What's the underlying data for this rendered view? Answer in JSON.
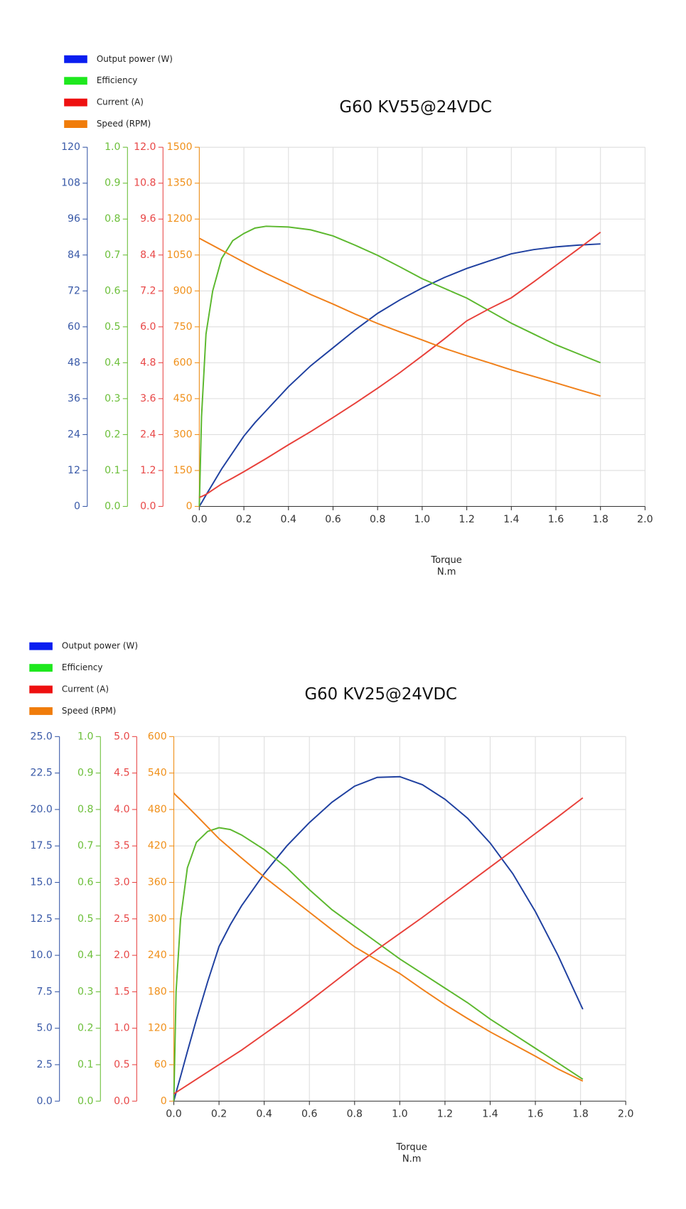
{
  "chart_data": [
    {
      "type": "line",
      "title": "G60 KV55@24VDC",
      "xlabel": "Torque",
      "xlabel_unit": "N.m",
      "xlim": [
        0,
        2
      ],
      "xticks": [
        {
          "value": 0,
          "label": "0.0"
        },
        0.2,
        0.4,
        0.6,
        0.8,
        {
          "value": 1,
          "label": "1.0"
        },
        1.2,
        1.4,
        1.6,
        1.8,
        {
          "value": 2,
          "label": "2.0"
        }
      ],
      "grid": true,
      "y_axes": [
        {
          "color": "#3a5aa8",
          "lim": [
            0,
            120
          ],
          "ticks": [
            0,
            12,
            24,
            36,
            48,
            60,
            72,
            84,
            96,
            108,
            120
          ]
        },
        {
          "color": "#6cbf3a",
          "lim": [
            0,
            1
          ],
          "ticks": [
            {
              "value": 0,
              "label": "0.0"
            },
            0.1,
            0.2,
            0.3,
            0.4,
            0.5,
            0.6,
            0.7,
            0.8,
            0.9,
            {
              "value": 1,
              "label": "1.0"
            }
          ]
        },
        {
          "color": "#e84848",
          "lim": [
            0,
            12
          ],
          "ticks": [
            {
              "value": 0,
              "label": "0.0"
            },
            1.2,
            2.4,
            3.6,
            4.8,
            {
              "value": 6,
              "label": "6.0"
            },
            7.2,
            8.4,
            9.6,
            10.8,
            {
              "value": 12,
              "label": "12.0"
            }
          ]
        },
        {
          "color": "#f0901a",
          "lim": [
            0,
            1500
          ],
          "ticks": [
            0,
            150,
            300,
            450,
            600,
            750,
            900,
            1050,
            1200,
            1350,
            1500
          ]
        }
      ],
      "x": [
        0,
        0.01,
        0.03,
        0.06,
        0.1,
        0.15,
        0.2,
        0.25,
        0.3,
        0.4,
        0.5,
        0.6,
        0.7,
        0.8,
        0.9,
        1.0,
        1.1,
        1.2,
        1.3,
        1.4,
        1.5,
        1.6,
        1.7,
        1.8
      ],
      "series": [
        {
          "name": "Output power (W)",
          "color": "#1f40a0",
          "legend_color": "#0a1ef0",
          "axis": 0,
          "values": [
            0,
            1.2,
            3.8,
            7.5,
            12.5,
            18,
            23.5,
            28,
            32,
            40,
            47,
            53,
            59,
            64.5,
            69,
            73,
            76.5,
            79.5,
            82,
            84.4,
            85.8,
            86.7,
            87.3,
            87.7
          ]
        },
        {
          "name": "Efficiency",
          "color": "#5cb82e",
          "legend_color": "#1ee81e",
          "axis": 1,
          "values": [
            0,
            0.25,
            0.48,
            0.6,
            0.69,
            0.74,
            0.76,
            0.775,
            0.78,
            0.778,
            0.77,
            0.753,
            0.727,
            0.699,
            0.667,
            0.634,
            0.607,
            0.58,
            0.545,
            0.51,
            0.48,
            0.45,
            0.425,
            0.4
          ]
        },
        {
          "name": "Current (A)",
          "color": "#e8403a",
          "legend_color": "#ee1010",
          "axis": 2,
          "values": [
            0.3,
            0.33,
            0.4,
            0.55,
            0.75,
            0.95,
            1.16,
            1.38,
            1.6,
            2.06,
            2.5,
            2.97,
            3.45,
            3.95,
            4.47,
            5.03,
            5.6,
            6.2,
            6.6,
            6.97,
            7.5,
            8.05,
            8.6,
            9.16
          ]
        },
        {
          "name": "Speed (RPM)",
          "color": "#f0801a",
          "legend_color": "#f07c0a",
          "axis": 3,
          "values": [
            1120,
            1115,
            1105,
            1090,
            1070,
            1045,
            1020,
            996,
            973,
            929,
            885,
            845,
            803,
            764,
            729,
            695,
            660,
            629,
            600,
            570,
            543,
            516,
            488,
            461
          ]
        }
      ]
    },
    {
      "type": "line",
      "title": "G60 KV25@24VDC",
      "xlabel": "Torque",
      "xlabel_unit": "N.m",
      "xlim": [
        0,
        2
      ],
      "xticks": [
        {
          "value": 0,
          "label": "0.0"
        },
        0.2,
        0.4,
        0.6,
        0.8,
        {
          "value": 1,
          "label": "1.0"
        },
        1.2,
        1.4,
        1.6,
        1.8,
        {
          "value": 2,
          "label": "2.0"
        }
      ],
      "grid": true,
      "y_axes": [
        {
          "color": "#3a5aa8",
          "lim": [
            0,
            25
          ],
          "ticks": [
            {
              "value": 0,
              "label": "0.0"
            },
            2.5,
            {
              "value": 5,
              "label": "5.0"
            },
            7.5,
            {
              "value": 10,
              "label": "10.0"
            },
            12.5,
            {
              "value": 15,
              "label": "15.0"
            },
            17.5,
            {
              "value": 20,
              "label": "20.0"
            },
            22.5,
            {
              "value": 25,
              "label": "25.0"
            }
          ]
        },
        {
          "color": "#6cbf3a",
          "lim": [
            0,
            1
          ],
          "ticks": [
            {
              "value": 0,
              "label": "0.0"
            },
            0.1,
            0.2,
            0.3,
            0.4,
            0.5,
            0.6,
            0.7,
            0.8,
            0.9,
            {
              "value": 1,
              "label": "1.0"
            }
          ]
        },
        {
          "color": "#e84848",
          "lim": [
            0,
            5
          ],
          "ticks": [
            {
              "value": 0,
              "label": "0.0"
            },
            0.5,
            {
              "value": 1,
              "label": "1.0"
            },
            1.5,
            {
              "value": 2,
              "label": "2.0"
            },
            2.5,
            {
              "value": 3,
              "label": "3.0"
            },
            3.5,
            {
              "value": 4,
              "label": "4.0"
            },
            4.5,
            {
              "value": 5,
              "label": "5.0"
            }
          ]
        },
        {
          "color": "#f0901a",
          "lim": [
            0,
            600
          ],
          "ticks": [
            0,
            60,
            120,
            180,
            240,
            300,
            360,
            420,
            480,
            540,
            600
          ]
        }
      ],
      "x": [
        0,
        0.01,
        0.03,
        0.06,
        0.1,
        0.15,
        0.2,
        0.25,
        0.3,
        0.4,
        0.5,
        0.6,
        0.7,
        0.8,
        0.9,
        1.0,
        1.1,
        1.2,
        1.3,
        1.4,
        1.5,
        1.6,
        1.7,
        1.81
      ],
      "series": [
        {
          "name": "Output power (W)",
          "color": "#1f40a0",
          "legend_color": "#0a1ef0",
          "axis": 0,
          "values": [
            0,
            0.6,
            1.7,
            3.4,
            5.6,
            8.2,
            10.6,
            12.1,
            13.4,
            15.6,
            17.5,
            19.1,
            20.5,
            21.6,
            22.2,
            22.25,
            21.7,
            20.7,
            19.4,
            17.7,
            15.6,
            13,
            10,
            6.3
          ]
        },
        {
          "name": "Efficiency",
          "color": "#5cb82e",
          "legend_color": "#1ee81e",
          "axis": 1,
          "values": [
            0,
            0.3,
            0.5,
            0.64,
            0.71,
            0.74,
            0.75,
            0.745,
            0.73,
            0.69,
            0.64,
            0.58,
            0.525,
            0.48,
            0.435,
            0.39,
            0.35,
            0.31,
            0.27,
            0.225,
            0.185,
            0.145,
            0.105,
            0.06
          ]
        },
        {
          "name": "Current (A)",
          "color": "#e8403a",
          "legend_color": "#ee1010",
          "axis": 2,
          "values": [
            0.1,
            0.12,
            0.16,
            0.22,
            0.3,
            0.4,
            0.5,
            0.6,
            0.7,
            0.92,
            1.14,
            1.37,
            1.61,
            1.85,
            2.08,
            2.3,
            2.52,
            2.75,
            2.98,
            3.21,
            3.44,
            3.67,
            3.9,
            4.16
          ]
        },
        {
          "name": "Speed (RPM)",
          "color": "#f0801a",
          "legend_color": "#f07c0a",
          "axis": 3,
          "values": [
            507,
            503,
            496,
            485,
            470,
            451,
            432,
            416,
            400,
            369,
            340,
            311,
            282,
            254,
            232,
            210,
            184,
            159,
            136,
            114,
            94,
            74,
            53,
            33
          ]
        }
      ]
    }
  ]
}
